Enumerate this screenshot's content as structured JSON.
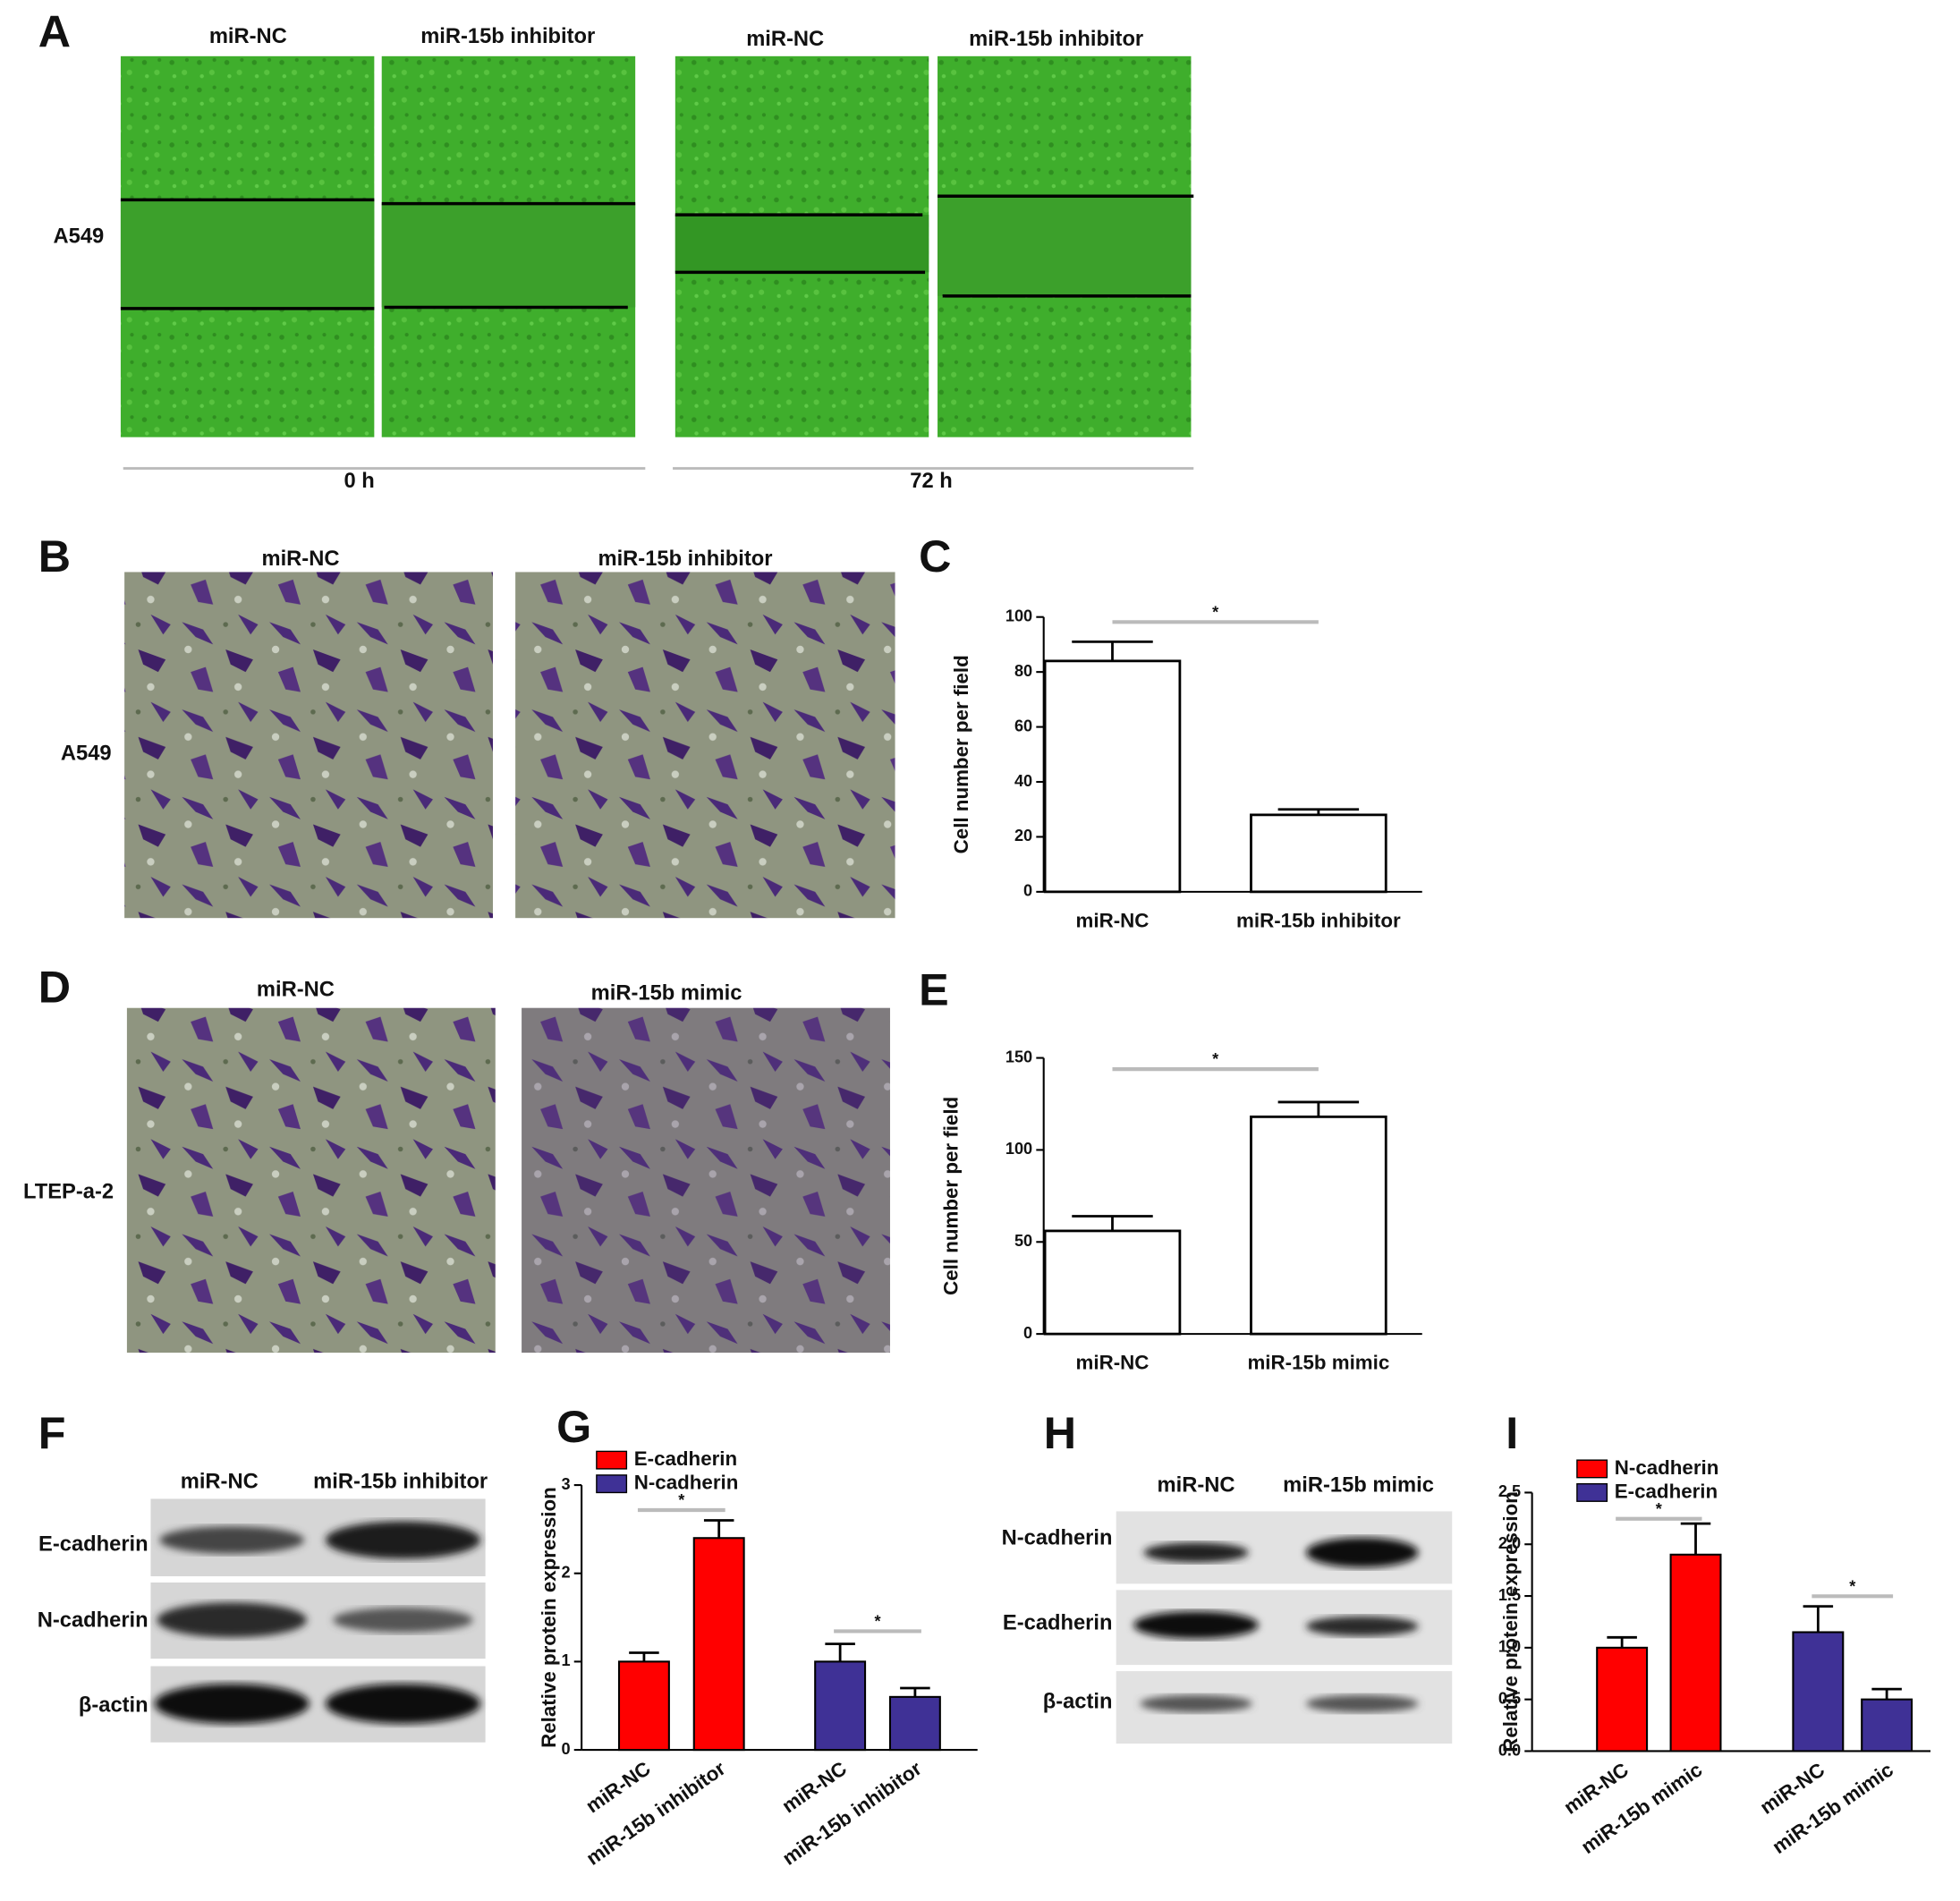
{
  "panels": {
    "A": {
      "letter": "A",
      "row_label": "A549",
      "columns": [
        "miR-NC",
        "miR-15b inhibitor",
        "miR-NC",
        "miR-15b inhibitor"
      ],
      "time_labels": [
        "0 h",
        "72 h"
      ]
    },
    "B": {
      "letter": "B",
      "row_label": "A549",
      "columns": [
        "miR-NC",
        "miR-15b inhibitor"
      ]
    },
    "D": {
      "letter": "D",
      "row_label": "LTEP-a-2",
      "columns": [
        "miR-NC",
        "miR-15b mimic"
      ]
    },
    "F": {
      "letter": "F",
      "columns": [
        "miR-NC",
        "miR-15b inhibitor"
      ],
      "rows": [
        "E-cadherin",
        "N-cadherin",
        "β-actin"
      ]
    },
    "H": {
      "letter": "H",
      "columns": [
        "miR-NC",
        "miR-15b mimic"
      ],
      "rows": [
        "N-cadherin",
        "E-cadherin",
        "β-actin"
      ]
    }
  },
  "chart_data": [
    {
      "type": "bar",
      "panel_label": "C",
      "y_label": "Cell number per field",
      "categories": [
        "miR-NC",
        "miR-15b inhibitor"
      ],
      "values": [
        84,
        28
      ],
      "errors": [
        7,
        2
      ],
      "color": "#ffffff",
      "ylim": [
        0,
        100
      ],
      "yticks": [
        0,
        20,
        40,
        60,
        80,
        100
      ],
      "significance": "*"
    },
    {
      "type": "bar",
      "panel_label": "E",
      "y_label": "Cell number per field",
      "categories": [
        "miR-NC",
        "miR-15b mimic"
      ],
      "values": [
        56,
        118
      ],
      "errors": [
        8,
        8
      ],
      "color": "#ffffff",
      "ylim": [
        0,
        150
      ],
      "yticks": [
        0,
        50,
        100,
        150
      ],
      "significance": "*"
    },
    {
      "type": "grouped_bar",
      "panel_label": "G",
      "y_label": "Relative protein expression",
      "categories": [
        "miR-NC",
        "miR-15b inhibitor"
      ],
      "series": [
        {
          "name": "E-cadherin",
          "color": "#ff0000",
          "values": [
            1.0,
            2.4
          ],
          "errors": [
            0.1,
            0.2
          ],
          "significance": "*"
        },
        {
          "name": "N-cadherin",
          "color": "#3f3196",
          "values": [
            1.0,
            0.6
          ],
          "errors": [
            0.2,
            0.1
          ],
          "significance": "*"
        }
      ],
      "ylim": [
        0,
        3
      ],
      "yticks": [
        0,
        1,
        2,
        3
      ],
      "legend": "upper left"
    },
    {
      "type": "grouped_bar",
      "panel_label": "I",
      "y_label": "Relative protein expression",
      "categories": [
        "miR-NC",
        "miR-15b mimic"
      ],
      "series": [
        {
          "name": "N-cadherin",
          "color": "#ff0000",
          "values": [
            1.0,
            1.9
          ],
          "errors": [
            0.1,
            0.3
          ],
          "significance": "*"
        },
        {
          "name": "E-cadherin",
          "color": "#3f3196",
          "values": [
            1.15,
            0.5
          ],
          "errors": [
            0.25,
            0.1
          ],
          "significance": "*"
        }
      ],
      "ylim": [
        0,
        2.5
      ],
      "yticks": [
        {
          "value": 0,
          "label": "0.0"
        },
        0.5,
        {
          "value": 1,
          "label": "1.0"
        },
        1.5,
        {
          "value": 2,
          "label": "2.0"
        },
        2.5
      ],
      "legend": "upper left"
    }
  ]
}
